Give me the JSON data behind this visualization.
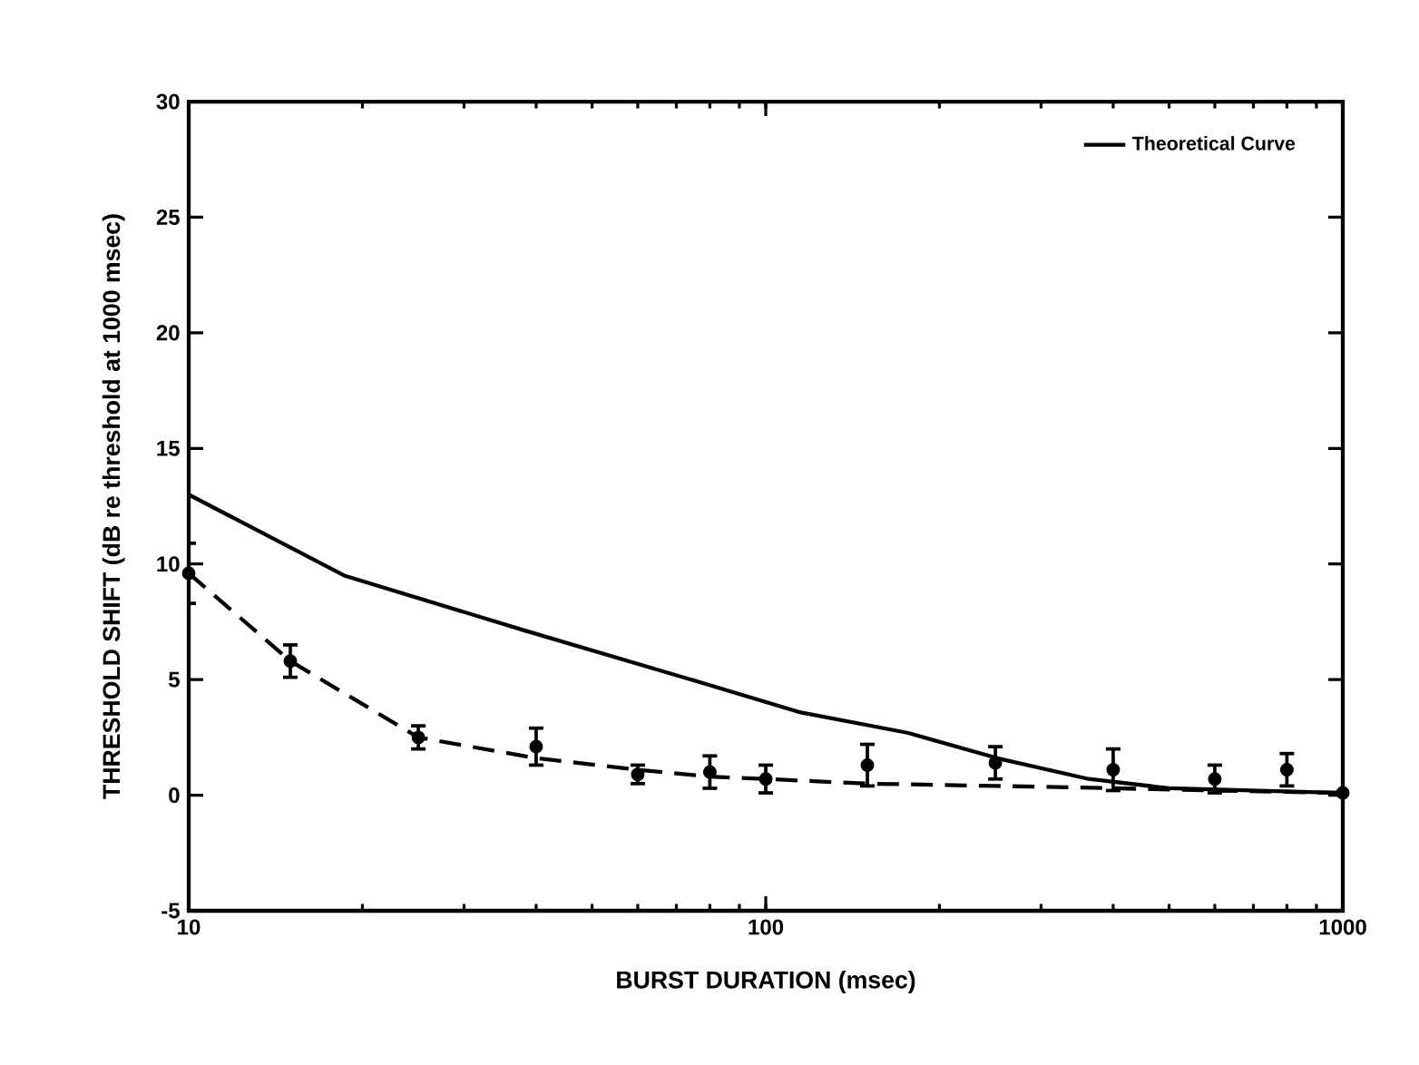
{
  "chart_data": {
    "type": "line",
    "xlabel": "BURST DURATION (msec)",
    "ylabel": "THRESHOLD SHIFT (dB re threshold at 1000 msec)",
    "log": "x",
    "xlim": [
      10,
      1000
    ],
    "xticks": [
      10,
      100,
      1000
    ],
    "ylim": [
      -5,
      30
    ],
    "yticks": [
      -5,
      0,
      5,
      10,
      15,
      20,
      25,
      30
    ],
    "grid": false,
    "legend": "top right",
    "series": [
      {
        "name": "Theoretical Curve",
        "line_style": "solid",
        "marker": "none",
        "color": "#000000",
        "x": [
          10,
          18.6,
          38.5,
          79,
          114,
          176,
          252,
          363,
          500,
          1000
        ],
        "values": [
          13.0,
          9.5,
          7.1,
          4.8,
          3.6,
          2.7,
          1.6,
          0.7,
          0.3,
          0.1
        ]
      },
      {
        "line_style": "dashed",
        "marker": "none",
        "color": "#000000",
        "x": [
          10,
          15,
          25,
          40,
          60,
          80,
          100,
          150,
          250,
          400,
          600,
          1000
        ],
        "values": [
          9.6,
          5.8,
          2.5,
          1.6,
          1.1,
          0.8,
          0.7,
          0.5,
          0.4,
          0.3,
          0.2,
          0.1
        ]
      },
      {
        "type": "scatter",
        "marker": "circle",
        "color": "#000000",
        "x": [
          10,
          15,
          25,
          40,
          60,
          80,
          100,
          150,
          250,
          400,
          600,
          800,
          1000
        ],
        "values": [
          9.6,
          5.8,
          2.5,
          2.1,
          0.9,
          1.0,
          0.7,
          1.3,
          1.4,
          1.1,
          0.7,
          1.1,
          0.1
        ],
        "errors": [
          1.3,
          0.7,
          0.5,
          0.8,
          0.4,
          0.7,
          0.6,
          0.9,
          0.7,
          0.9,
          0.6,
          0.7,
          null
        ]
      }
    ]
  }
}
